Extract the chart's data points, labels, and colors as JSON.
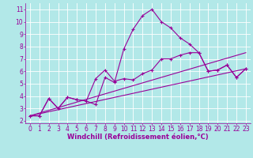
{
  "xlabel": "Windchill (Refroidissement éolien,°C)",
  "ylabel": "",
  "xlim": [
    -0.5,
    23.5
  ],
  "ylim": [
    1.8,
    11.5
  ],
  "xticks": [
    0,
    1,
    2,
    3,
    4,
    5,
    6,
    7,
    8,
    9,
    10,
    11,
    12,
    13,
    14,
    15,
    16,
    17,
    18,
    19,
    20,
    21,
    22,
    23
  ],
  "yticks": [
    2,
    3,
    4,
    5,
    6,
    7,
    8,
    9,
    10,
    11
  ],
  "bg_color": "#b2e8e8",
  "line_color": "#990099",
  "line1_x": [
    0,
    1,
    2,
    3,
    4,
    5,
    6,
    7,
    8,
    9,
    10,
    11,
    12,
    13,
    14,
    15,
    16,
    17,
    18,
    19,
    20,
    21,
    22,
    23
  ],
  "line1_y": [
    2.4,
    2.4,
    3.8,
    3.0,
    3.9,
    3.7,
    3.6,
    3.3,
    5.5,
    5.1,
    7.8,
    9.4,
    10.5,
    11.0,
    10.0,
    9.5,
    8.7,
    8.2,
    7.5,
    6.0,
    6.1,
    6.5,
    5.5,
    6.2
  ],
  "line2_x": [
    0,
    1,
    2,
    3,
    4,
    5,
    6,
    7,
    8,
    9,
    10,
    11,
    12,
    13,
    14,
    15,
    16,
    17,
    18,
    19,
    20,
    21,
    22,
    23
  ],
  "line2_y": [
    2.4,
    2.4,
    3.8,
    3.0,
    3.9,
    3.7,
    3.6,
    5.4,
    6.1,
    5.2,
    5.4,
    5.3,
    5.8,
    6.1,
    7.0,
    7.0,
    7.3,
    7.5,
    7.5,
    6.0,
    6.1,
    6.5,
    5.5,
    6.2
  ],
  "line3_x": [
    0,
    23
  ],
  "line3_y": [
    2.4,
    6.2
  ],
  "line4_x": [
    0,
    23
  ],
  "line4_y": [
    2.4,
    7.5
  ],
  "grid_color": "#ffffff",
  "tick_fontsize": 5.5,
  "label_fontsize": 6.0
}
